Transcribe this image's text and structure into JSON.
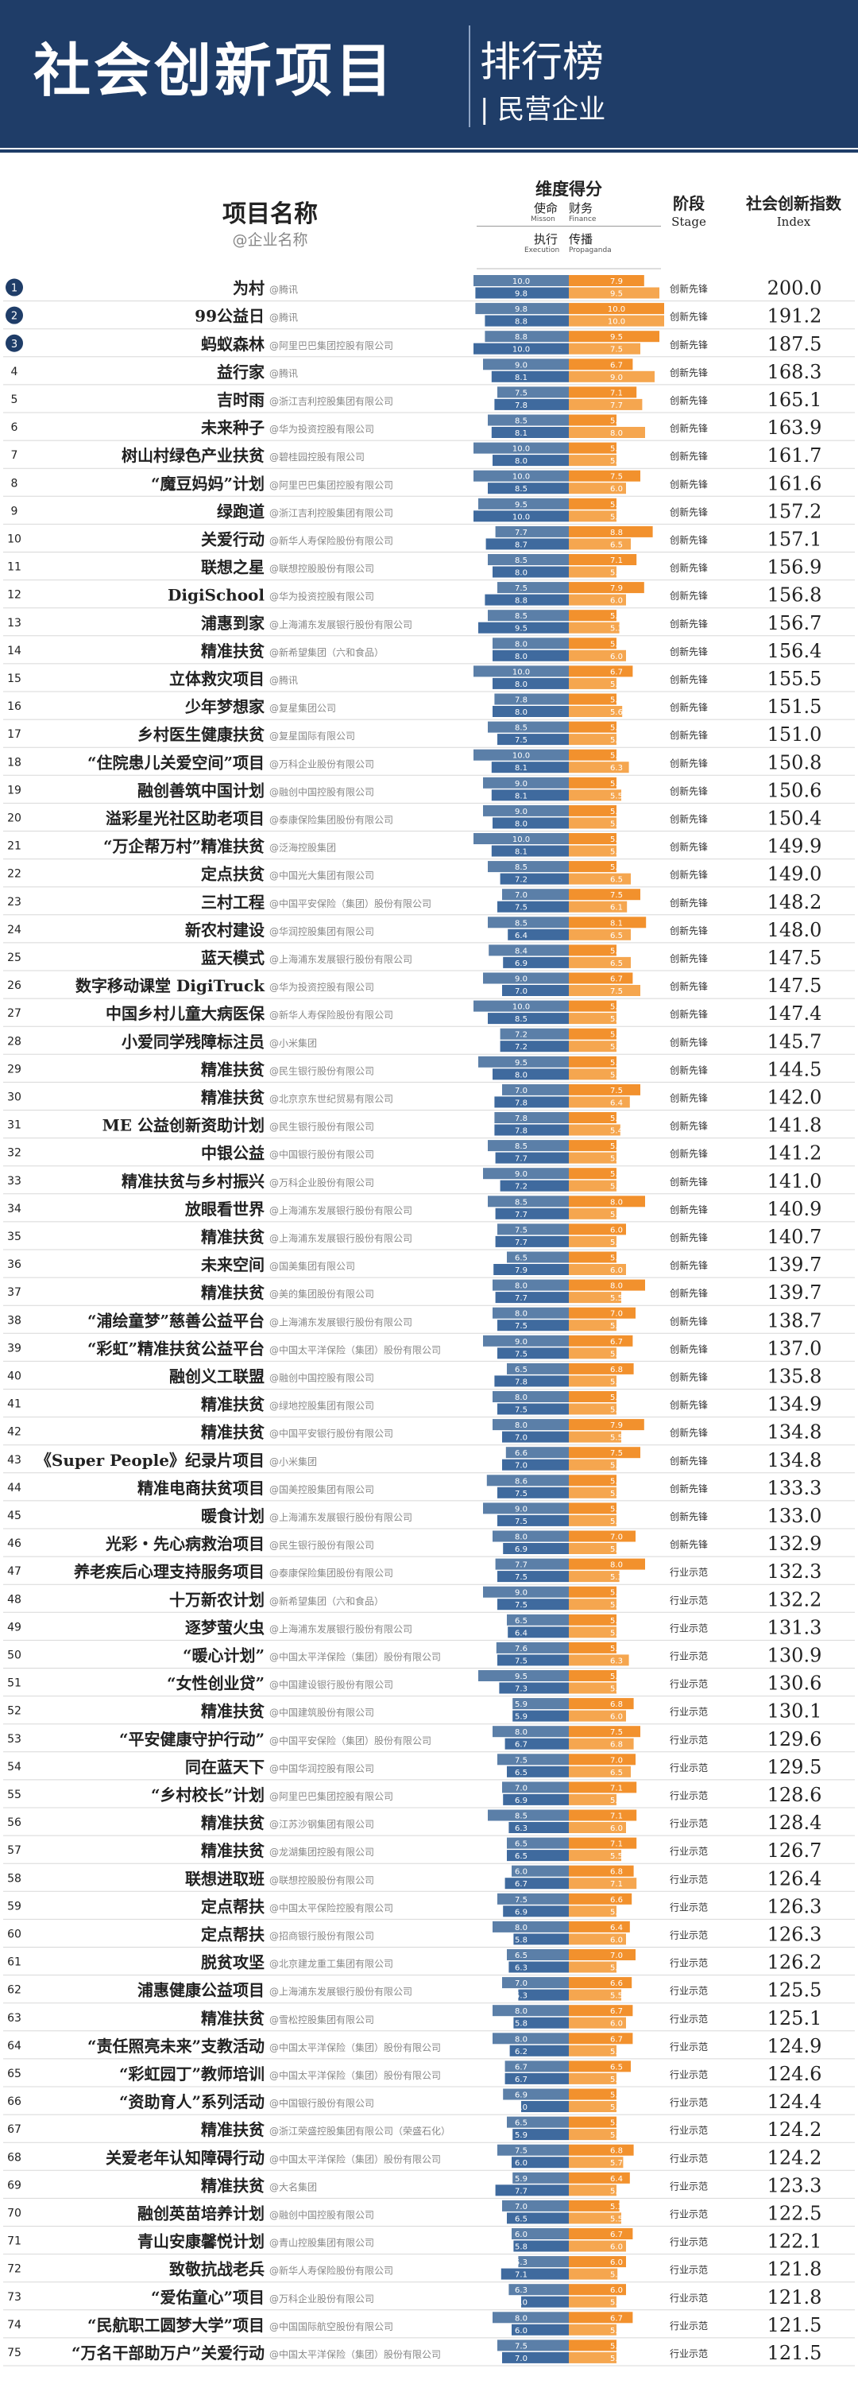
{
  "banner": {
    "title": "社会创新项目",
    "subtitle1": "排行榜",
    "subtitle2": "| 民营企业"
  },
  "headers": {
    "name": "项目名称",
    "name_sub": "@企业名称",
    "dimension": "维度得分",
    "mission": "使命",
    "mission_en": "Misson",
    "finance": "财务",
    "finance_en": "Finance",
    "execution": "执行",
    "execution_en": "Execution",
    "propaganda": "传播",
    "propaganda_en": "Propaganda",
    "stage": "阶段",
    "stage_en": "Stage",
    "index": "社会创新指数",
    "index_en": "Index"
  },
  "colors": {
    "banner": "#1f3d68",
    "mission_bar": "#5b7fa8",
    "finance_bar": "#f2912d",
    "execution_bar": "#3f6a9e",
    "propaganda_bar": "#f5a64f"
  },
  "chart_data": {
    "type": "table",
    "columns": [
      "rank",
      "project",
      "company",
      "mission",
      "finance",
      "execution",
      "propaganda",
      "stage",
      "index"
    ],
    "rows": [
      [
        1,
        "为村",
        "@腾讯",
        10.0,
        7.9,
        9.8,
        9.5,
        "创新先锋",
        200.0
      ],
      [
        2,
        "99公益日",
        "@腾讯",
        9.8,
        10.0,
        8.8,
        10.0,
        "创新先锋",
        191.2
      ],
      [
        3,
        "蚂蚁森林",
        "@阿里巴巴集团控股有限公司",
        8.8,
        9.5,
        10.0,
        7.5,
        "创新先锋",
        187.5
      ],
      [
        4,
        "益行家",
        "@腾讯",
        9.0,
        6.7,
        8.1,
        9.0,
        "创新先锋",
        168.3
      ],
      [
        5,
        "吉时雨",
        "@浙江吉利控股集团有限公司",
        7.5,
        7.1,
        7.8,
        7.7,
        "创新先锋",
        165.1
      ],
      [
        6,
        "未来种子",
        "@华为投资控股有限公司",
        8.5,
        5.0,
        8.1,
        8.0,
        "创新先锋",
        163.9
      ],
      [
        7,
        "树山村绿色产业扶贫",
        "@碧桂园控股有限公司",
        10.0,
        5.0,
        8.0,
        5.0,
        "创新先锋",
        161.7
      ],
      [
        8,
        "“魔豆妈妈”计划",
        "@阿里巴巴集团控股有限公司",
        10.0,
        7.5,
        8.5,
        6.0,
        "创新先锋",
        161.6
      ],
      [
        9,
        "绿跑道",
        "@浙江吉利控股集团有限公司",
        9.5,
        5.0,
        10.0,
        5.0,
        "创新先锋",
        157.2
      ],
      [
        10,
        "关爱行动",
        "@新华人寿保险股份有限公司",
        7.7,
        8.8,
        8.7,
        6.5,
        "创新先锋",
        157.1
      ],
      [
        11,
        "联想之星",
        "@联想控股股份有限公司",
        8.5,
        7.1,
        8.0,
        5.0,
        "创新先锋",
        156.9
      ],
      [
        12,
        "DigiSchool",
        "@华为投资控股有限公司",
        7.5,
        7.9,
        8.8,
        6.0,
        "创新先锋",
        156.8
      ],
      [
        13,
        "浦惠到家",
        "@上海浦东发展银行股份有限公司",
        8.5,
        5.0,
        9.5,
        5.3,
        "创新先锋",
        156.7
      ],
      [
        14,
        "精准扶贫",
        "@新希望集团（六和食品）",
        8.0,
        5.0,
        8.0,
        6.0,
        "创新先锋",
        156.4
      ],
      [
        15,
        "立体救灾项目",
        "@腾讯",
        10.0,
        6.7,
        8.0,
        5.0,
        "创新先锋",
        155.5
      ],
      [
        16,
        "少年梦想家",
        "@复星集团公司",
        7.8,
        5.0,
        8.0,
        5.6,
        "创新先锋",
        151.5
      ],
      [
        17,
        "乡村医生健康扶贫",
        "@复星国际有限公司",
        8.5,
        5.0,
        7.5,
        5.0,
        "创新先锋",
        151.0
      ],
      [
        18,
        "“住院患儿关爱空间”项目",
        "@万科企业股份有限公司",
        10.0,
        5.0,
        8.1,
        6.3,
        "创新先锋",
        150.8
      ],
      [
        19,
        "融创善筑中国计划",
        "@融创中国控股有限公司",
        9.0,
        5.0,
        8.1,
        5.5,
        "创新先锋",
        150.6
      ],
      [
        20,
        "溢彩星光社区助老项目",
        "@泰康保险集团股份有限公司",
        9.0,
        5.0,
        8.0,
        5.0,
        "创新先锋",
        150.4
      ],
      [
        21,
        "“万企帮万村”精准扶贫",
        "@泛海控股集团",
        10.0,
        5.0,
        8.1,
        5.0,
        "创新先锋",
        149.9
      ],
      [
        22,
        "定点扶贫",
        "@中国光大集团有限公司",
        8.5,
        5.0,
        7.2,
        6.5,
        "创新先锋",
        149.0
      ],
      [
        23,
        "三村工程",
        "@中国平安保险（集团）股份有限公司",
        7.0,
        7.5,
        7.5,
        6.1,
        "创新先锋",
        148.2
      ],
      [
        24,
        "新农村建设",
        "@华润控股集团有限公司",
        8.5,
        8.1,
        6.4,
        6.5,
        "创新先锋",
        148.0
      ],
      [
        25,
        "蓝天模式",
        "@上海浦东发展银行股份有限公司",
        8.4,
        5.0,
        6.9,
        6.5,
        "创新先锋",
        147.5
      ],
      [
        26,
        "数字移动课堂 DigiTruck",
        "@华为投资控股有限公司",
        9.0,
        6.7,
        7.0,
        7.5,
        "创新先锋",
        147.5
      ],
      [
        27,
        "中国乡村儿童大病医保",
        "@新华人寿保险股份有限公司",
        10.0,
        5.0,
        8.5,
        5.0,
        "创新先锋",
        147.4
      ],
      [
        28,
        "小爱同学残障标注员",
        "@小米集团",
        7.2,
        5.0,
        7.2,
        5.0,
        "创新先锋",
        145.7
      ],
      [
        29,
        "精准扶贫",
        "@民生银行股份有限公司",
        9.5,
        5.0,
        8.0,
        5.0,
        "创新先锋",
        144.5
      ],
      [
        30,
        "精准扶贫",
        "@北京京东世纪贸易有限公司",
        7.0,
        7.5,
        7.8,
        6.4,
        "创新先锋",
        142.0
      ],
      [
        31,
        "ME 公益创新资助计划",
        "@民生银行股份有限公司",
        7.8,
        5.0,
        7.8,
        5.4,
        "创新先锋",
        141.8
      ],
      [
        32,
        "中银公益",
        "@中国银行股份有限公司",
        8.5,
        5.0,
        7.7,
        5.0,
        "创新先锋",
        141.2
      ],
      [
        33,
        "精准扶贫与乡村振兴",
        "@万科企业股份有限公司",
        9.0,
        5.0,
        7.2,
        5.0,
        "创新先锋",
        141.0
      ],
      [
        34,
        "放眼看世界",
        "@上海浦东发展银行股份有限公司",
        8.5,
        8.0,
        7.7,
        5.0,
        "创新先锋",
        140.9
      ],
      [
        35,
        "精准扶贫",
        "@上海浦东发展银行股份有限公司",
        7.5,
        6.0,
        7.7,
        5.0,
        "创新先锋",
        140.7
      ],
      [
        36,
        "未来空间",
        "@国美集团有限公司",
        6.5,
        5.0,
        7.9,
        6.0,
        "创新先锋",
        139.7
      ],
      [
        37,
        "精准扶贫",
        "@美的集团股份有限公司",
        8.0,
        8.0,
        7.7,
        5.5,
        "创新先锋",
        139.7
      ],
      [
        38,
        "“浦绘童梦”慈善公益平台",
        "@上海浦东发展银行股份有限公司",
        8.0,
        7.0,
        7.5,
        5.0,
        "创新先锋",
        138.7
      ],
      [
        39,
        "“彩虹”精准扶贫公益平台",
        "@中国太平洋保险（集团）股份有限公司",
        9.0,
        6.7,
        7.5,
        5.0,
        "创新先锋",
        137.0
      ],
      [
        40,
        "融创义工联盟",
        "@融创中国控股有限公司",
        6.5,
        6.8,
        7.8,
        5.0,
        "创新先锋",
        135.8
      ],
      [
        41,
        "精准扶贫",
        "@绿地控股集团有限公司",
        8.0,
        5.0,
        7.5,
        5.0,
        "创新先锋",
        134.9
      ],
      [
        42,
        "精准扶贫",
        "@中国平安银行股份有限公司",
        8.0,
        7.9,
        7.0,
        5.5,
        "创新先锋",
        134.8
      ],
      [
        43,
        "《Super People》纪录片项目",
        "@小米集团",
        6.6,
        7.5,
        7.0,
        5.0,
        "创新先锋",
        134.8
      ],
      [
        44,
        "精准电商扶贫项目",
        "@国美控股集团有限公司",
        8.6,
        5.0,
        7.5,
        5.0,
        "创新先锋",
        133.3
      ],
      [
        45,
        "暖食计划",
        "@上海浦东发展银行股份有限公司",
        9.0,
        5.0,
        7.5,
        5.0,
        "创新先锋",
        133.0
      ],
      [
        46,
        "光彩・先心病救治项目",
        "@民生银行股份有限公司",
        8.0,
        7.0,
        6.9,
        5.0,
        "创新先锋",
        132.9
      ],
      [
        47,
        "养老疾后心理支持服务项目",
        "@泰康保险集团股份有限公司",
        7.7,
        8.0,
        7.5,
        5.3,
        "行业示范",
        132.3
      ],
      [
        48,
        "十万新农计划",
        "@新希望集团（六和食品）",
        9.0,
        5.0,
        7.5,
        5.0,
        "行业示范",
        132.2
      ],
      [
        49,
        "逐梦萤火虫",
        "@上海浦东发展银行股份有限公司",
        6.5,
        5.0,
        6.4,
        5.0,
        "行业示范",
        131.3
      ],
      [
        50,
        "“暖心计划”",
        "@中国太平洋保险（集团）股份有限公司",
        7.6,
        5.0,
        7.5,
        6.3,
        "行业示范",
        130.9
      ],
      [
        51,
        "“女性创业贷”",
        "@中国建设银行股份有限公司",
        9.5,
        5.0,
        7.3,
        5.0,
        "行业示范",
        130.6
      ],
      [
        52,
        "精准扶贫",
        "@中国建筑股份有限公司",
        5.9,
        6.8,
        5.9,
        6.0,
        "行业示范",
        130.1
      ],
      [
        53,
        "“平安健康守护行动”",
        "@中国平安保险（集团）股份有限公司",
        8.0,
        7.5,
        6.7,
        6.8,
        "行业示范",
        129.6
      ],
      [
        54,
        "同在蓝天下",
        "@中国华润控股有限公司",
        7.5,
        7.0,
        6.5,
        6.5,
        "行业示范",
        129.5
      ],
      [
        55,
        "“乡村校长”计划",
        "@阿里巴巴集团控股有限公司",
        7.0,
        7.1,
        6.9,
        5.0,
        "行业示范",
        128.6
      ],
      [
        56,
        "精准扶贫",
        "@江苏沙钢集团有限公司",
        8.5,
        7.1,
        6.3,
        6.0,
        "行业示范",
        128.4
      ],
      [
        57,
        "精准扶贫",
        "@龙湖集团控股有限公司",
        6.5,
        7.1,
        6.5,
        5.5,
        "行业示范",
        126.7
      ],
      [
        58,
        "联想进取班",
        "@联想控股股份有限公司",
        6.0,
        6.8,
        6.7,
        7.1,
        "行业示范",
        126.4
      ],
      [
        59,
        "定点帮扶",
        "@中国太平保险控股有限公司",
        7.5,
        6.6,
        6.9,
        5.0,
        "行业示范",
        126.3
      ],
      [
        60,
        "定点帮扶",
        "@招商银行股份有限公司",
        8.0,
        6.4,
        5.8,
        6.0,
        "行业示范",
        126.3
      ],
      [
        61,
        "脱贫攻坚",
        "@北京建龙重工集团有限公司",
        6.5,
        7.0,
        6.3,
        5.0,
        "行业示范",
        126.2
      ],
      [
        62,
        "浦惠健康公益项目",
        "@上海浦东发展银行股份有限公司",
        7.0,
        6.6,
        5.3,
        5.5,
        "行业示范",
        125.5
      ],
      [
        63,
        "精准扶贫",
        "@雪松控股集团有限公司",
        8.0,
        6.7,
        5.8,
        6.0,
        "行业示范",
        125.1
      ],
      [
        64,
        "“责任照亮未来”支教活动",
        "@中国太平洋保险（集团）股份有限公司",
        8.0,
        6.7,
        6.2,
        5.0,
        "行业示范",
        124.9
      ],
      [
        65,
        "“彩虹园丁”教师培训",
        "@中国太平洋保险（集团）股份有限公司",
        6.7,
        6.5,
        6.7,
        5.0,
        "行业示范",
        124.6
      ],
      [
        66,
        "“资助育人”系列活动",
        "@中国银行股份有限公司",
        6.9,
        5.0,
        5.0,
        5.0,
        "行业示范",
        124.4
      ],
      [
        67,
        "精准扶贫",
        "@浙江荣盛控股集团有限公司（荣盛石化）",
        6.5,
        5.0,
        5.9,
        5.0,
        "行业示范",
        124.2
      ],
      [
        68,
        "关爱老年认知障碍行动",
        "@中国太平洋保险（集团）股份有限公司",
        7.5,
        6.8,
        6.0,
        5.7,
        "行业示范",
        124.2
      ],
      [
        69,
        "精准扶贫",
        "@大名集团",
        5.9,
        6.4,
        7.7,
        5.0,
        "行业示范",
        123.3
      ],
      [
        70,
        "融创英苗培养计划",
        "@融创中国控股有限公司",
        7.0,
        5.3,
        6.5,
        5.5,
        "行业示范",
        122.5
      ],
      [
        71,
        "青山安康馨悦计划",
        "@青山控股集团有限公司",
        6.0,
        6.7,
        5.8,
        6.0,
        "行业示范",
        122.1
      ],
      [
        72,
        "致敬抗战老兵",
        "@新华人寿保险股份有限公司",
        5.3,
        6.0,
        7.1,
        5.1,
        "行业示范",
        121.8
      ],
      [
        73,
        "“爱佑童心”项目",
        "@万科企业股份有限公司",
        6.3,
        6.0,
        5.0,
        5.0,
        "行业示范",
        121.8
      ],
      [
        74,
        "“民航职工圆梦大学”项目",
        "@中国国际航空股份有限公司",
        8.0,
        6.7,
        6.0,
        5.0,
        "行业示范",
        121.5
      ],
      [
        75,
        "“万名干部助万户”关爱行动",
        "@中国太平洋保险（集团）股份有限公司",
        7.5,
        5.0,
        7.0,
        5.0,
        "行业示范",
        121.5
      ]
    ]
  }
}
